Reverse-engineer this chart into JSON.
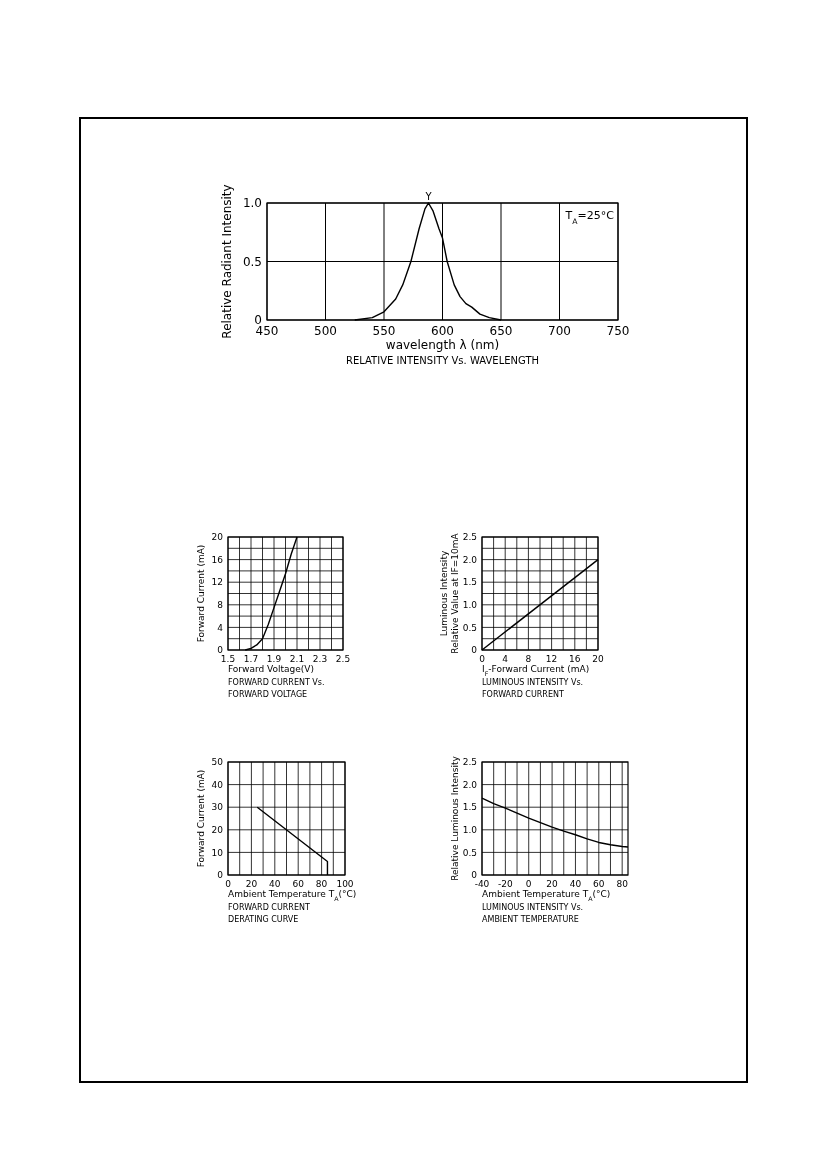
{
  "chart_data": [
    {
      "type": "line",
      "title": "RELATIVE INTENSITY Vs. WAVELENGTH",
      "xlabel": "wavelength λ (nm)",
      "ylabel": "Relative Radiant Intensity",
      "x": [
        525,
        540,
        550,
        560,
        566,
        573,
        580,
        585,
        588,
        592,
        597,
        600,
        604,
        610,
        615,
        620,
        625,
        632,
        640,
        650
      ],
      "series": [
        {
          "color": "#000000",
          "values": [
            0,
            0.02,
            0.07,
            0.18,
            0.3,
            0.5,
            0.78,
            0.95,
            1.0,
            0.93,
            0.78,
            0.7,
            0.5,
            0.3,
            0.2,
            0.14,
            0.11,
            0.05,
            0.02,
            0
          ]
        }
      ],
      "xlim": [
        450,
        750
      ],
      "xticks": [
        450,
        500,
        550,
        600,
        650,
        700,
        750
      ],
      "ylim": [
        0,
        1
      ],
      "yticks": [
        0,
        0.5,
        {
          "value": 1,
          "label": "1.0"
        }
      ],
      "grid": true,
      "marker": "none",
      "line_style": "solid",
      "annotations": [
        {
          "text": "Y",
          "x": 588,
          "y": 1.0
        },
        "T$_{A}$=25°C"
      ]
    },
    {
      "type": "line",
      "title": "FORWARD CURRENT Vs.\nFORWARD VOLTAGE",
      "xlabel": "Forward Voltage(V)",
      "ylabel": "Forward Current (mA)",
      "x": [
        1.65,
        1.7,
        1.75,
        1.8,
        1.85,
        1.9,
        1.95,
        2.0,
        2.05,
        2.1
      ],
      "series": [
        {
          "color": "#000000",
          "values": [
            0,
            0.3,
            0.9,
            2,
            4.5,
            7.5,
            10.5,
            13.5,
            17,
            20
          ]
        }
      ],
      "xlim": [
        1.5,
        2.5
      ],
      "xticks": [
        1.5,
        {
          "value": 1.6,
          "label": null
        },
        1.7,
        {
          "value": 1.8,
          "label": null
        },
        1.9,
        {
          "value": 2.0,
          "label": null
        },
        2.1,
        {
          "value": 2.2,
          "label": null
        },
        2.3,
        {
          "value": 2.4,
          "label": null
        },
        2.5
      ],
      "ylim": [
        0,
        20
      ],
      "yticks": [
        0,
        {
          "value": 2,
          "label": null
        },
        4,
        {
          "value": 6,
          "label": null
        },
        8,
        {
          "value": 10,
          "label": null
        },
        12,
        {
          "value": 14,
          "label": null
        },
        16,
        {
          "value": 18,
          "label": null
        },
        20
      ],
      "grid": true,
      "marker": "none",
      "line_style": "solid"
    },
    {
      "type": "line",
      "title": "LUMINOUS INTENSITY Vs.\nFORWARD CURRENT",
      "xlabel": "I$_{F}$-Forward Current (mA)",
      "ylabel": "Luminous Intensity\nRelative Value at IF=10mA",
      "x": [
        0,
        20
      ],
      "series": [
        {
          "color": "#000000",
          "values": [
            0,
            2.0
          ]
        }
      ],
      "xlim": [
        0,
        20
      ],
      "xticks": [
        0,
        {
          "value": 2,
          "label": null
        },
        4,
        {
          "value": 6,
          "label": null
        },
        8,
        {
          "value": 10,
          "label": null
        },
        12,
        {
          "value": 14,
          "label": null
        },
        16,
        {
          "value": 18,
          "label": null
        },
        20
      ],
      "ylim": [
        0,
        2.5
      ],
      "yticks": [
        0,
        {
          "value": 0.25,
          "label": null
        },
        0.5,
        {
          "value": 0.75,
          "label": null
        },
        {
          "value": 1,
          "label": "1.0"
        },
        {
          "value": 1.25,
          "label": null
        },
        1.5,
        {
          "value": 1.75,
          "label": null
        },
        {
          "value": 2,
          "label": "2.0"
        },
        {
          "value": 2.25,
          "label": null
        },
        2.5
      ],
      "grid": true,
      "marker": "none",
      "line_style": "solid"
    },
    {
      "type": "line",
      "title": "FORWARD CURRENT\nDERATING CURVE",
      "xlabel": "Ambient Temperature T$_{A}$(°C)",
      "ylabel": "Forward Current (mA)",
      "x": [
        25,
        85,
        85
      ],
      "series": [
        {
          "color": "#000000",
          "values": [
            30,
            6,
            0
          ]
        }
      ],
      "xlim": [
        0,
        100
      ],
      "xticks": [
        0,
        {
          "value": 10,
          "label": null
        },
        20,
        {
          "value": 30,
          "label": null
        },
        40,
        {
          "value": 50,
          "label": null
        },
        60,
        {
          "value": 70,
          "label": null
        },
        80,
        {
          "value": 90,
          "label": null
        },
        100
      ],
      "ylim": [
        0,
        50
      ],
      "yticks": [
        0,
        10,
        20,
        30,
        40,
        50
      ],
      "grid": true,
      "marker": "none",
      "line_style": "solid"
    },
    {
      "type": "line",
      "title": "LUMINOUS INTENSITY Vs.\nAMBIENT TEMPERATURE",
      "xlabel": "Ambient Temperature T$_{A}$(°C)",
      "ylabel": "Relative Luminous Intensity",
      "x": [
        -40,
        -30,
        -20,
        -10,
        0,
        10,
        20,
        30,
        40,
        50,
        60,
        70,
        80,
        85
      ],
      "series": [
        {
          "color": "#000000",
          "values": [
            1.7,
            1.58,
            1.48,
            1.37,
            1.26,
            1.16,
            1.06,
            0.97,
            0.89,
            0.8,
            0.72,
            0.67,
            0.63,
            0.62
          ]
        }
      ],
      "xlim": [
        -40,
        85
      ],
      "xticks": [
        -40,
        {
          "value": -30,
          "label": null
        },
        -20,
        {
          "value": -10,
          "label": null
        },
        0,
        {
          "value": 10,
          "label": null
        },
        20,
        {
          "value": 30,
          "label": null
        },
        40,
        {
          "value": 50,
          "label": null
        },
        60,
        {
          "value": 70,
          "label": null
        },
        80
      ],
      "ylim": [
        0,
        2.5
      ],
      "yticks": [
        0,
        0.5,
        {
          "value": 1,
          "label": "1.0"
        },
        1.5,
        {
          "value": 2,
          "label": "2.0"
        },
        2.5
      ],
      "grid": true,
      "marker": "none",
      "line_style": "solid"
    }
  ]
}
